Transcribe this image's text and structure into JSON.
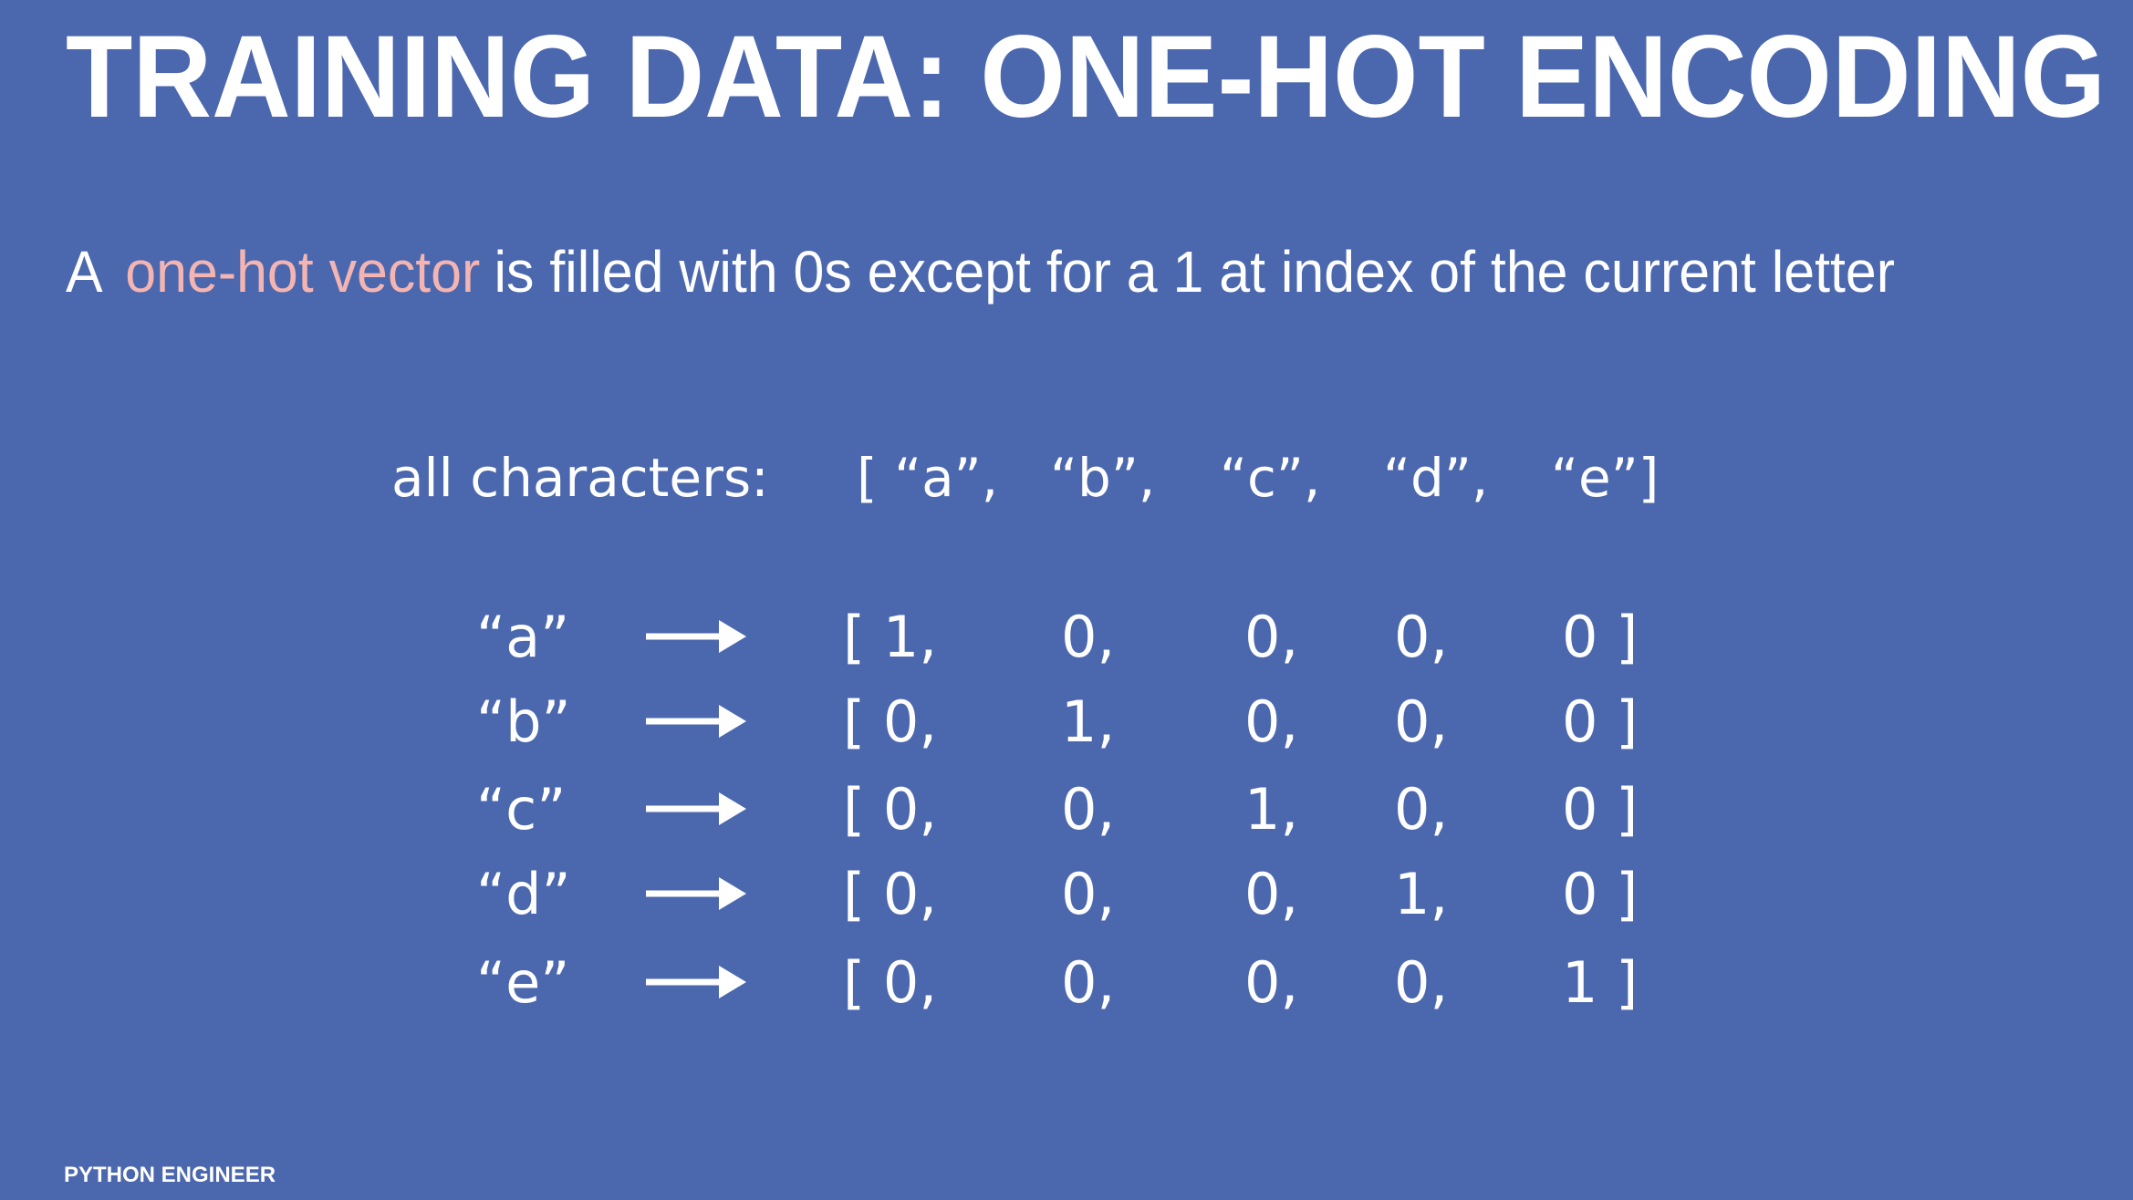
{
  "header": {
    "title": "TRAINING DATA: ONE-HOT ENCODING",
    "subtitle": {
      "lead": "A",
      "highlight": "one-hot vector",
      "rest": "is  filled with 0s except for a 1 at index of the current letter"
    }
  },
  "table": {
    "caption": "all characters:",
    "header": [
      "[ “a”,",
      "“b”,",
      "“c”,",
      "“d”,",
      "“e”]"
    ],
    "rows": [
      {
        "label": "“a”",
        "cells": [
          "[  1,",
          "0,",
          "0,",
          "0,",
          "0  ]"
        ]
      },
      {
        "label": "“b”",
        "cells": [
          "[  0,",
          "1,",
          "0,",
          "0,",
          "0  ]"
        ]
      },
      {
        "label": "“c”",
        "cells": [
          "[  0,",
          "0,",
          "1,",
          "0,",
          "0  ]"
        ]
      },
      {
        "label": "“d”",
        "cells": [
          "[  0,",
          "0,",
          "0,",
          "1,",
          "0  ]"
        ]
      },
      {
        "label": "“e”",
        "cells": [
          "[  0,",
          "0,",
          "0,",
          "0,",
          "1  ]"
        ]
      }
    ]
  },
  "footer": {
    "brand": "PYTHON ENGINEER"
  }
}
